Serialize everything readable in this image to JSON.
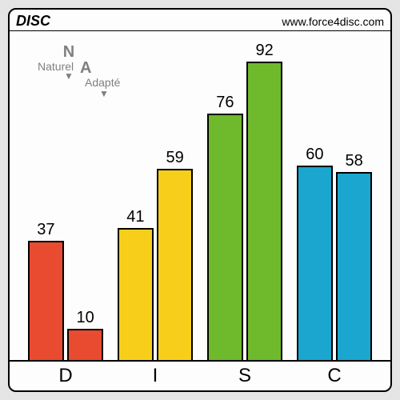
{
  "header": {
    "title": "DISC",
    "url": "www.force4disc.com"
  },
  "legend": {
    "naturel": {
      "letter": "N",
      "label": "Naturel",
      "arrow": "▼"
    },
    "adapte": {
      "letter": "A",
      "label": "Adapté",
      "arrow": "▼"
    }
  },
  "colors": {
    "page_bg": "#e5e5e5",
    "panel_bg": "#fdfdfd",
    "border": "#000000",
    "text": "#000000",
    "legend_text": "#808080",
    "series": {
      "D": "#e84b30",
      "I": "#f7cf1b",
      "S": "#6fb92c",
      "C": "#1aa6cf"
    }
  },
  "chart": {
    "type": "bar",
    "ymax": 100,
    "bar_width_pct": 40,
    "bar_gap_pct": 4,
    "value_fontsize": 20,
    "xlabel_fontsize": 24,
    "categories": [
      {
        "key": "D",
        "label": "D",
        "naturel": 37,
        "adapte": 10
      },
      {
        "key": "I",
        "label": "I",
        "naturel": 41,
        "adapte": 59
      },
      {
        "key": "S",
        "label": "S",
        "naturel": 76,
        "adapte": 92
      },
      {
        "key": "C",
        "label": "C",
        "naturel": 60,
        "adapte": 58
      }
    ]
  }
}
